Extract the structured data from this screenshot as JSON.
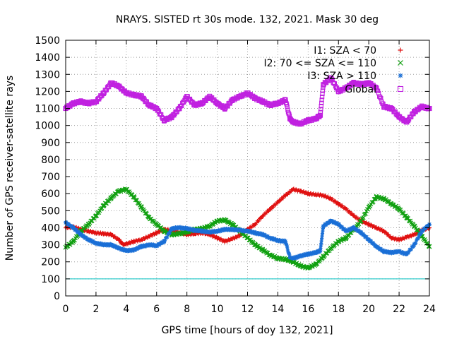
{
  "chart_data": {
    "type": "scatter",
    "title": "NRAYS. SISTED rt 30s mode. 132, 2021. Mask 30 deg",
    "xlabel": "GPS time [hours of doy 132, 2021]",
    "ylabel": "Number of GPS receiver-satellite rays",
    "xlim": [
      0,
      24
    ],
    "ylim": [
      0,
      1500
    ],
    "xticks": [
      0,
      2,
      4,
      6,
      8,
      10,
      12,
      14,
      16,
      18,
      20,
      22,
      24
    ],
    "yticks": [
      0,
      100,
      200,
      300,
      400,
      500,
      600,
      700,
      800,
      900,
      1000,
      1100,
      1200,
      1300,
      1400,
      1500
    ],
    "threshold_line": {
      "y": 100,
      "color": "#00c0c0"
    },
    "series": [
      {
        "name": "I1: SZA < 70",
        "marker": "+",
        "color": "#e01010",
        "x": [
          0,
          0.5,
          1,
          1.5,
          2,
          2.5,
          3,
          3.5,
          3.8,
          4,
          4.5,
          5,
          5.5,
          6,
          6.5,
          7,
          7.5,
          8,
          8.5,
          9,
          9.5,
          10,
          10.5,
          11,
          11.5,
          12,
          12.5,
          13,
          13.5,
          14,
          14.5,
          15,
          15.5,
          16,
          16.5,
          17,
          17.5,
          18,
          18.5,
          19,
          19.5,
          20,
          20.5,
          21,
          21.5,
          22,
          22.5,
          23,
          23.5,
          24
        ],
        "y": [
          400,
          405,
          390,
          380,
          370,
          365,
          360,
          330,
          300,
          305,
          320,
          330,
          350,
          370,
          390,
          385,
          370,
          360,
          365,
          370,
          360,
          340,
          320,
          335,
          355,
          390,
          420,
          470,
          510,
          550,
          590,
          625,
          615,
          600,
          595,
          590,
          570,
          540,
          510,
          470,
          440,
          420,
          400,
          380,
          340,
          330,
          345,
          360,
          385,
          400
        ]
      },
      {
        "name": "I2: 70 <= SZA <= 110",
        "marker": "x",
        "color": "#10a010",
        "x": [
          0,
          0.5,
          1,
          1.5,
          2,
          2.5,
          3,
          3.5,
          4,
          4.5,
          5,
          5.5,
          6,
          6.5,
          7,
          7.5,
          8,
          8.5,
          9,
          9.5,
          10,
          10.5,
          11,
          11.5,
          12,
          12.5,
          13,
          13.5,
          14,
          14.5,
          15,
          15.5,
          16,
          16.5,
          17,
          17.5,
          18,
          18.5,
          19,
          19.5,
          20,
          20.5,
          21,
          21.5,
          22,
          22.5,
          23,
          23.5,
          24
        ],
        "y": [
          285,
          320,
          380,
          420,
          470,
          530,
          575,
          615,
          625,
          580,
          520,
          460,
          420,
          380,
          360,
          365,
          375,
          390,
          395,
          410,
          440,
          445,
          420,
          380,
          340,
          300,
          270,
          240,
          220,
          215,
          200,
          175,
          165,
          185,
          230,
          280,
          320,
          340,
          390,
          440,
          520,
          580,
          570,
          540,
          510,
          460,
          410,
          350,
          290
        ]
      },
      {
        "name": "I3: SZA > 110",
        "marker": "*",
        "color": "#1a6fd6",
        "x": [
          0,
          0.5,
          1,
          1.5,
          2,
          2.5,
          3,
          3.5,
          4,
          4.5,
          5,
          5.5,
          6,
          6.5,
          7,
          7.5,
          8,
          8.5,
          9,
          9.5,
          10,
          10.5,
          11,
          11.5,
          12,
          12.5,
          13,
          13.5,
          14,
          14.5,
          14.8,
          15,
          15.5,
          16,
          16.5,
          16.8,
          17,
          17.5,
          18,
          18.5,
          19,
          19.5,
          20,
          20.5,
          21,
          21.5,
          22,
          22.5,
          23,
          23.5,
          24
        ],
        "y": [
          430,
          400,
          360,
          330,
          310,
          300,
          300,
          280,
          265,
          270,
          290,
          300,
          295,
          320,
          395,
          400,
          395,
          385,
          380,
          375,
          380,
          390,
          390,
          385,
          380,
          370,
          360,
          340,
          325,
          320,
          225,
          220,
          235,
          245,
          255,
          265,
          410,
          440,
          420,
          380,
          400,
          370,
          330,
          290,
          260,
          255,
          260,
          245,
          300,
          380,
          420
        ]
      },
      {
        "name": "Global",
        "marker": "square",
        "color": "#c020e0",
        "x": [
          0,
          0.5,
          1,
          1.5,
          2,
          2.5,
          3,
          3.5,
          4,
          4.5,
          5,
          5.5,
          6,
          6.5,
          7,
          7.5,
          8,
          8.5,
          9,
          9.5,
          10,
          10.5,
          11,
          11.5,
          12,
          12.5,
          13,
          13.5,
          14,
          14.5,
          14.8,
          15,
          15.5,
          16,
          16.5,
          16.8,
          17,
          17.5,
          18,
          18.5,
          19,
          19.5,
          20,
          20.5,
          21,
          21.5,
          22,
          22.5,
          23,
          23.5,
          24
        ],
        "y": [
          1100,
          1130,
          1140,
          1130,
          1140,
          1190,
          1250,
          1230,
          1190,
          1180,
          1170,
          1120,
          1100,
          1030,
          1050,
          1100,
          1170,
          1120,
          1130,
          1170,
          1130,
          1100,
          1150,
          1170,
          1190,
          1160,
          1140,
          1120,
          1130,
          1150,
          1040,
          1020,
          1010,
          1030,
          1040,
          1060,
          1240,
          1280,
          1200,
          1220,
          1250,
          1240,
          1250,
          1220,
          1110,
          1100,
          1050,
          1020,
          1080,
          1110,
          1100
        ]
      }
    ]
  }
}
